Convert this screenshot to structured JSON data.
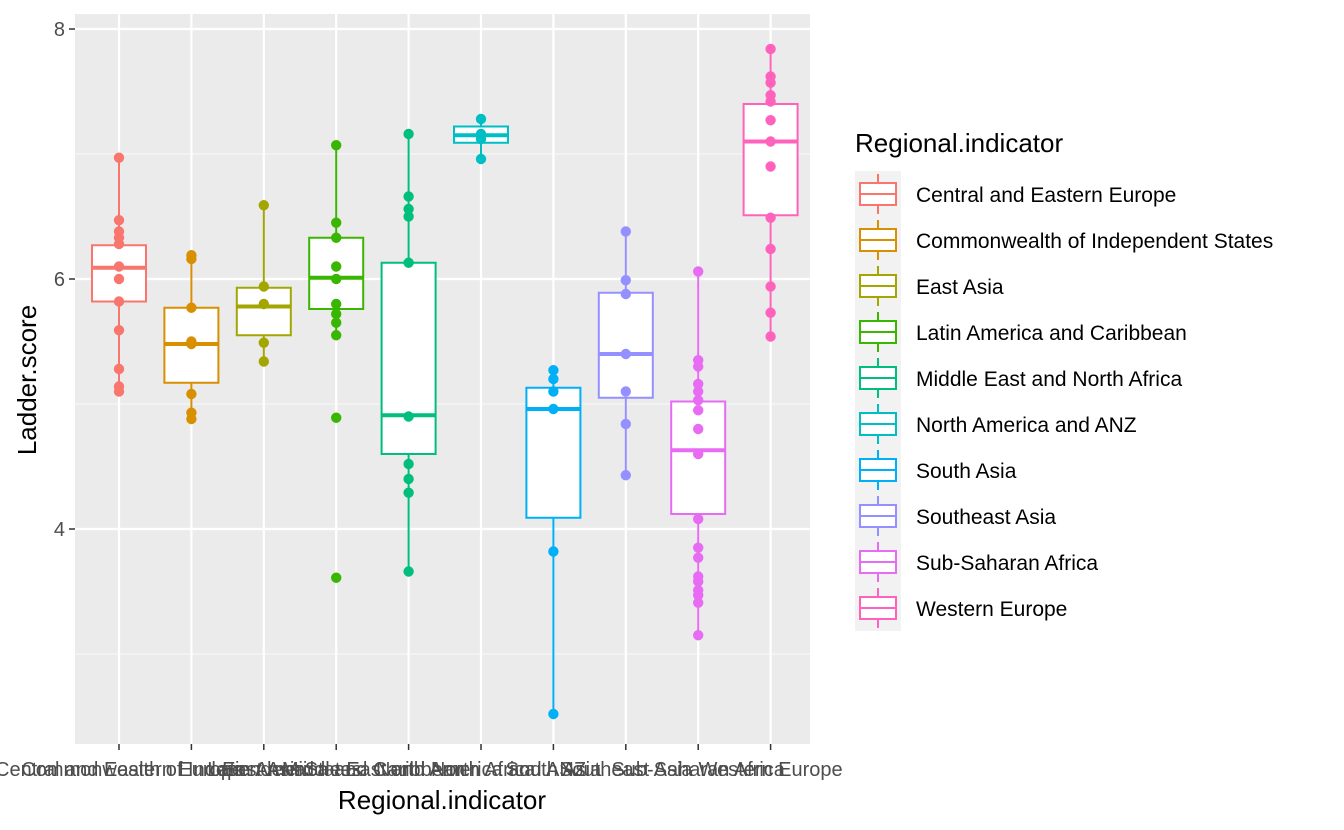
{
  "chart_data": {
    "type": "boxplot",
    "xlabel": "Regional.indicator",
    "ylabel": "Ladder.score",
    "ylim": [
      2.3,
      8.1
    ],
    "yticks": [
      4,
      6,
      8
    ],
    "grid": true,
    "legend": {
      "title": "Regional.indicator",
      "position": "right"
    },
    "categories": [
      "Central and Eastern Europe",
      "Commonwealth of Independent States",
      "East Asia",
      "Latin America and Caribbean",
      "Middle East and North Africa",
      "North America and ANZ",
      "South Asia",
      "Southeast Asia",
      "Sub-Saharan Africa",
      "Western Europe"
    ],
    "colors": [
      "#F8766D",
      "#D89000",
      "#A3A500",
      "#39B600",
      "#00BF7D",
      "#00BFC4",
      "#00B0F6",
      "#9590FF",
      "#E76BF3",
      "#FF62BC"
    ],
    "boxes": [
      {
        "q1": 5.82,
        "median": 6.09,
        "q3": 6.27,
        "whisker_low": 5.1,
        "whisker_high": 6.97
      },
      {
        "q1": 5.17,
        "median": 5.48,
        "q3": 5.77,
        "whisker_low": 4.88,
        "whisker_high": 6.19
      },
      {
        "q1": 5.55,
        "median": 5.78,
        "q3": 5.93,
        "whisker_low": 5.34,
        "whisker_high": 6.59
      },
      {
        "q1": 5.76,
        "median": 6.01,
        "q3": 6.33,
        "whisker_low": 5.54,
        "whisker_high": 7.07
      },
      {
        "q1": 4.6,
        "median": 4.91,
        "q3": 6.13,
        "whisker_low": 3.66,
        "whisker_high": 7.16
      },
      {
        "q1": 7.09,
        "median": 7.15,
        "q3": 7.22,
        "whisker_low": 6.96,
        "whisker_high": 7.28
      },
      {
        "q1": 4.09,
        "median": 4.96,
        "q3": 5.13,
        "whisker_low": 2.52,
        "whisker_high": 5.27
      },
      {
        "q1": 5.05,
        "median": 5.4,
        "q3": 5.89,
        "whisker_low": 4.43,
        "whisker_high": 6.38
      },
      {
        "q1": 4.12,
        "median": 4.63,
        "q3": 5.02,
        "whisker_low": 3.15,
        "whisker_high": 6.06
      },
      {
        "q1": 6.51,
        "median": 7.1,
        "q3": 7.4,
        "whisker_low": 5.54,
        "whisker_high": 7.84
      }
    ],
    "points": [
      [
        6.97,
        6.47,
        6.38,
        6.33,
        6.28,
        5.82,
        5.59,
        5.28,
        5.14,
        5.1,
        6.1,
        6.0
      ],
      [
        6.19,
        6.16,
        5.77,
        5.48,
        5.08,
        4.93,
        4.88,
        5.5
      ],
      [
        6.59,
        5.94,
        5.49,
        5.34,
        5.8
      ],
      [
        7.07,
        6.45,
        6.33,
        5.72,
        5.65,
        5.55,
        4.89,
        3.61,
        6.0,
        6.1,
        5.8
      ],
      [
        7.16,
        6.66,
        6.56,
        6.5,
        6.13,
        4.52,
        4.4,
        4.29,
        3.66,
        4.9
      ],
      [
        7.28,
        6.96,
        7.16,
        7.12
      ],
      [
        5.27,
        5.2,
        3.82,
        2.52,
        4.96,
        5.1
      ],
      [
        6.38,
        5.99,
        5.88,
        4.84,
        4.43,
        5.4,
        5.1
      ],
      [
        6.06,
        5.35,
        5.3,
        5.16,
        5.1,
        5.03,
        4.95,
        4.08,
        3.85,
        3.77,
        3.62,
        3.58,
        3.51,
        3.47,
        3.41,
        3.15,
        4.6,
        4.8
      ],
      [
        7.84,
        7.62,
        7.57,
        7.47,
        7.42,
        7.27,
        6.49,
        6.24,
        5.94,
        5.73,
        5.54,
        7.1,
        6.9
      ]
    ]
  }
}
